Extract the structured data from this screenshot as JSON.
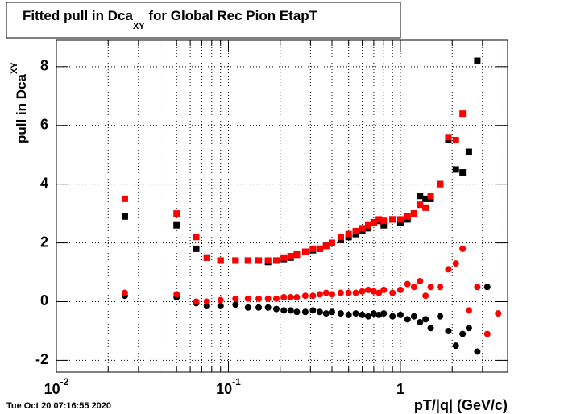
{
  "chart_data": {
    "type": "scatter",
    "title": {
      "main": "Fitted pull in Dca",
      "subscript": "XY",
      "rest": " for Global Rec Pion EtapT"
    },
    "y_label": {
      "main": "pull in Dca",
      "subscript": "XY"
    },
    "x_label": "pT/|q| (GeV/c)",
    "timestamp": "Tue Oct 20 07:16:55 2020",
    "log_x": true,
    "grid": true,
    "xlim": [
      0.01,
      4.2
    ],
    "ylim": [
      -2.4,
      8.9
    ],
    "xticks": [
      {
        "value": 0.01,
        "label": "10",
        "exponent": "-2"
      },
      {
        "value": 0.1,
        "label": "10",
        "exponent": "-1"
      },
      1
    ],
    "xminorticks": [
      0.02,
      0.03,
      0.04,
      0.05,
      0.06,
      0.07,
      0.08,
      0.09,
      0.2,
      0.3,
      0.4,
      0.5,
      0.6,
      0.7,
      0.8,
      0.9,
      2,
      3,
      4
    ],
    "yticks": [
      -2,
      0,
      2,
      4,
      6,
      8
    ],
    "x": [
      0.025,
      0.05,
      0.065,
      0.075,
      0.09,
      0.11,
      0.13,
      0.15,
      0.17,
      0.19,
      0.21,
      0.23,
      0.25,
      0.28,
      0.31,
      0.34,
      0.37,
      0.4,
      0.45,
      0.5,
      0.55,
      0.6,
      0.65,
      0.7,
      0.75,
      0.8,
      0.9,
      1.0,
      1.1,
      1.2,
      1.3,
      1.4,
      1.5,
      1.7,
      1.9,
      2.1,
      2.3,
      2.5,
      2.8,
      3.2,
      3.7
    ],
    "series": [
      {
        "color": "#000000",
        "marker": "square",
        "values": [
          2.9,
          2.6,
          1.8,
          1.5,
          1.4,
          1.4,
          1.4,
          1.4,
          1.35,
          1.4,
          1.45,
          1.5,
          1.6,
          1.7,
          1.75,
          1.8,
          1.9,
          2.0,
          2.1,
          2.2,
          2.3,
          2.4,
          2.5,
          2.7,
          2.75,
          2.6,
          2.8,
          2.7,
          2.8,
          3.0,
          3.6,
          3.5,
          3.5,
          4.0,
          5.5,
          4.5,
          4.4,
          5.1,
          8.2,
          null,
          null
        ]
      },
      {
        "color": "#ff0000",
        "marker": "square",
        "values": [
          3.5,
          3.0,
          2.2,
          1.5,
          1.4,
          1.4,
          1.4,
          1.4,
          1.4,
          1.4,
          1.5,
          1.55,
          1.6,
          1.7,
          1.8,
          1.8,
          1.9,
          2.0,
          2.2,
          2.3,
          2.4,
          2.5,
          2.6,
          2.7,
          2.8,
          2.75,
          2.8,
          2.8,
          2.9,
          3.0,
          3.3,
          3.2,
          3.6,
          4.0,
          5.6,
          5.5,
          6.4,
          null,
          null,
          null,
          null
        ]
      },
      {
        "color": "#000000",
        "marker": "circle",
        "values": [
          0.2,
          0.15,
          -0.05,
          -0.15,
          -0.15,
          -0.1,
          -0.2,
          -0.2,
          -0.2,
          -0.25,
          -0.3,
          -0.3,
          -0.35,
          -0.35,
          -0.3,
          -0.35,
          -0.4,
          -0.35,
          -0.4,
          -0.45,
          -0.4,
          -0.45,
          -0.5,
          -0.4,
          -0.45,
          -0.4,
          -0.5,
          -0.45,
          -0.6,
          -0.5,
          -0.7,
          -0.6,
          -0.9,
          -0.5,
          -1.0,
          -1.5,
          -1.1,
          -0.9,
          -1.7,
          0.5,
          null
        ]
      },
      {
        "color": "#ff0000",
        "marker": "circle",
        "values": [
          0.3,
          0.25,
          0.0,
          0.0,
          0.05,
          0.1,
          0.1,
          0.1,
          0.1,
          0.1,
          0.15,
          0.15,
          0.15,
          0.2,
          0.2,
          0.25,
          0.3,
          0.25,
          0.3,
          0.3,
          0.3,
          0.35,
          0.4,
          0.35,
          0.3,
          0.4,
          0.3,
          0.4,
          0.6,
          0.5,
          0.7,
          0.2,
          0.5,
          0.5,
          1.1,
          1.3,
          1.8,
          -0.3,
          0.5,
          -1.1,
          -0.4
        ]
      }
    ]
  }
}
